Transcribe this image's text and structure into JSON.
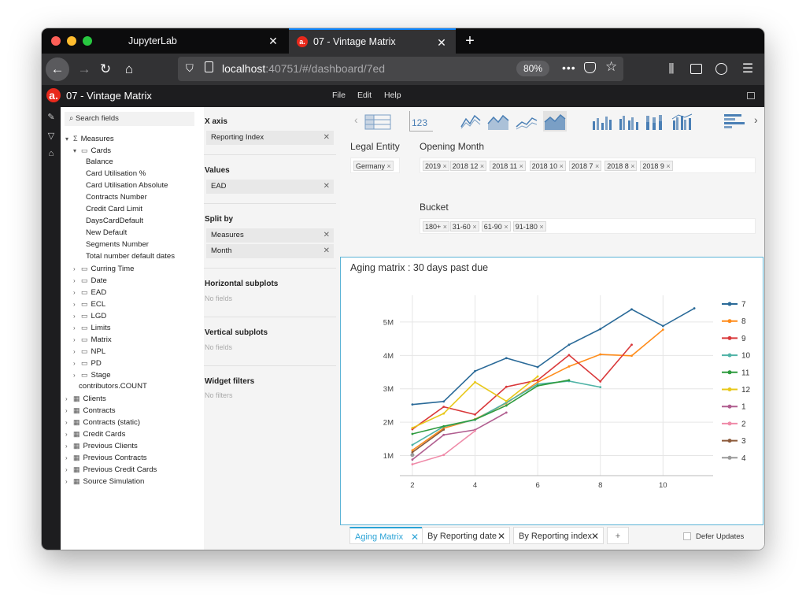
{
  "browser": {
    "tabs": [
      {
        "label": "JupyterLab"
      },
      {
        "label": "07 - Vintage Matrix",
        "active": true
      }
    ],
    "url_host": "localhost",
    "url_rest": ":40751/#/dashboard/7ed",
    "zoom": "80%"
  },
  "app": {
    "logo_letter": "a.",
    "title": "07 - Vintage Matrix",
    "menu": [
      "File",
      "Edit",
      "Help"
    ]
  },
  "fields": {
    "search_placeholder": "Search fields",
    "measures_label": "Measures",
    "cards_label": "Cards",
    "card_measures": [
      "Balance",
      "Card Utilisation %",
      "Card Utilisation Absolute",
      "Contracts Number",
      "Credit Card Limit",
      "DaysCardDefault",
      "New Default",
      "Segments Number",
      "Total number default dates"
    ],
    "measure_folders": [
      "Curring Time",
      "Date",
      "EAD",
      "ECL",
      "LGD",
      "Limits",
      "Matrix",
      "NPL",
      "PD",
      "Stage"
    ],
    "count_label": "contributors.COUNT",
    "tables": [
      "Clients",
      "Contracts",
      "Contracts (static)",
      "Credit Cards",
      "Previous Clients",
      "Previous Contracts",
      "Previous Credit Cards",
      "Source Simulation"
    ]
  },
  "config": {
    "x_axis_label": "X axis",
    "x_axis_field": "Reporting Index",
    "values_label": "Values",
    "values_field": "EAD",
    "split_label": "Split by",
    "split_fields": [
      "Measures",
      "Month"
    ],
    "hsub_label": "Horizontal subplots",
    "vsub_label": "Vertical subplots",
    "filters_label": "Widget filters",
    "no_fields": "No fields",
    "no_filters": "No filters"
  },
  "filters": {
    "legal_entity_label": "Legal Entity",
    "legal_entity_values": [
      "Germany"
    ],
    "opening_month_label": "Opening Month",
    "opening_month_values": [
      "2019",
      "2018 12",
      "2018 11",
      "2018 10",
      "2018 7",
      "2018 8",
      "2018 9"
    ],
    "bucket_label": "Bucket",
    "bucket_values": [
      "180+",
      "31-60",
      "61-90",
      "91-180"
    ]
  },
  "widget_toolbar": {
    "icons": [
      "table-icon",
      "kpi-icon",
      "line-chart-icon",
      "area-chart-icon",
      "stacked-line-icon",
      "stacked-area-icon",
      "bar-chart-icon",
      "grouped-bar-icon",
      "stacked-bar-icon",
      "clustered-bar-icon",
      "horizontal-bar-icon"
    ],
    "kpi_text": "123"
  },
  "bottom_tabs": [
    "Aging Matrix",
    "By Reporting date",
    "By Reporting index"
  ],
  "defer_label": "Defer Updates",
  "colors": {
    "accent": "#0a84ff",
    "brand": "#e8291c",
    "active_tab": "#2ba3d6"
  },
  "chart_data": {
    "type": "line",
    "title": "Aging matrix : 30 days past due",
    "x_ticks": [
      2,
      4,
      6,
      8,
      10
    ],
    "y_ticks": [
      1000000,
      2000000,
      3000000,
      4000000,
      5000000
    ],
    "y_tick_labels": [
      "1M",
      "2M",
      "3M",
      "4M",
      "5M"
    ],
    "xlim": [
      1.6,
      11.6
    ],
    "ylim": [
      400000,
      5800000
    ],
    "legend_position": "right",
    "series": [
      {
        "name": "7",
        "color": "#2a6a98",
        "x": [
          2,
          3,
          4,
          5,
          6,
          7,
          8,
          9,
          10,
          11
        ],
        "y": [
          2530000,
          2620000,
          3530000,
          3920000,
          3650000,
          4320000,
          4790000,
          5380000,
          4880000,
          5410000
        ]
      },
      {
        "name": "8",
        "color": "#ff8c1a",
        "x": [
          2,
          3,
          4,
          5,
          6,
          7,
          8,
          9,
          10
        ],
        "y": [
          1160000,
          1820000,
          2090000,
          2570000,
          3200000,
          3670000,
          4030000,
          3990000,
          4770000
        ]
      },
      {
        "name": "9",
        "color": "#d9383a",
        "x": [
          2,
          3,
          4,
          5,
          6,
          7,
          8,
          9
        ],
        "y": [
          1790000,
          2460000,
          2230000,
          3060000,
          3260000,
          4010000,
          3220000,
          4320000
        ]
      },
      {
        "name": "10",
        "color": "#4fb3a6",
        "x": [
          2,
          3,
          4,
          5,
          6,
          7,
          8
        ],
        "y": [
          1320000,
          1870000,
          2070000,
          2590000,
          3140000,
          3230000,
          3050000
        ]
      },
      {
        "name": "11",
        "color": "#2e9b3e",
        "x": [
          2,
          3,
          4,
          5,
          6,
          7
        ],
        "y": [
          1650000,
          1880000,
          2080000,
          2500000,
          3090000,
          3260000
        ]
      },
      {
        "name": "12",
        "color": "#e8c81a",
        "x": [
          2,
          3,
          4,
          5,
          6
        ],
        "y": [
          1830000,
          2260000,
          3200000,
          2630000,
          3370000
        ]
      },
      {
        "name": "1",
        "color": "#b05d8f",
        "x": [
          2,
          3,
          4,
          5
        ],
        "y": [
          880000,
          1620000,
          1770000,
          2290000
        ]
      },
      {
        "name": "2",
        "color": "#ef8aa8",
        "x": [
          2,
          3,
          4
        ],
        "y": [
          740000,
          1020000,
          1740000
        ]
      },
      {
        "name": "3",
        "color": "#8c5a3a",
        "x": [
          2,
          3
        ],
        "y": [
          1100000,
          1780000
        ]
      },
      {
        "name": "4",
        "color": "#9a9a9a",
        "x": [
          2
        ],
        "y": [
          1020000
        ]
      }
    ]
  }
}
